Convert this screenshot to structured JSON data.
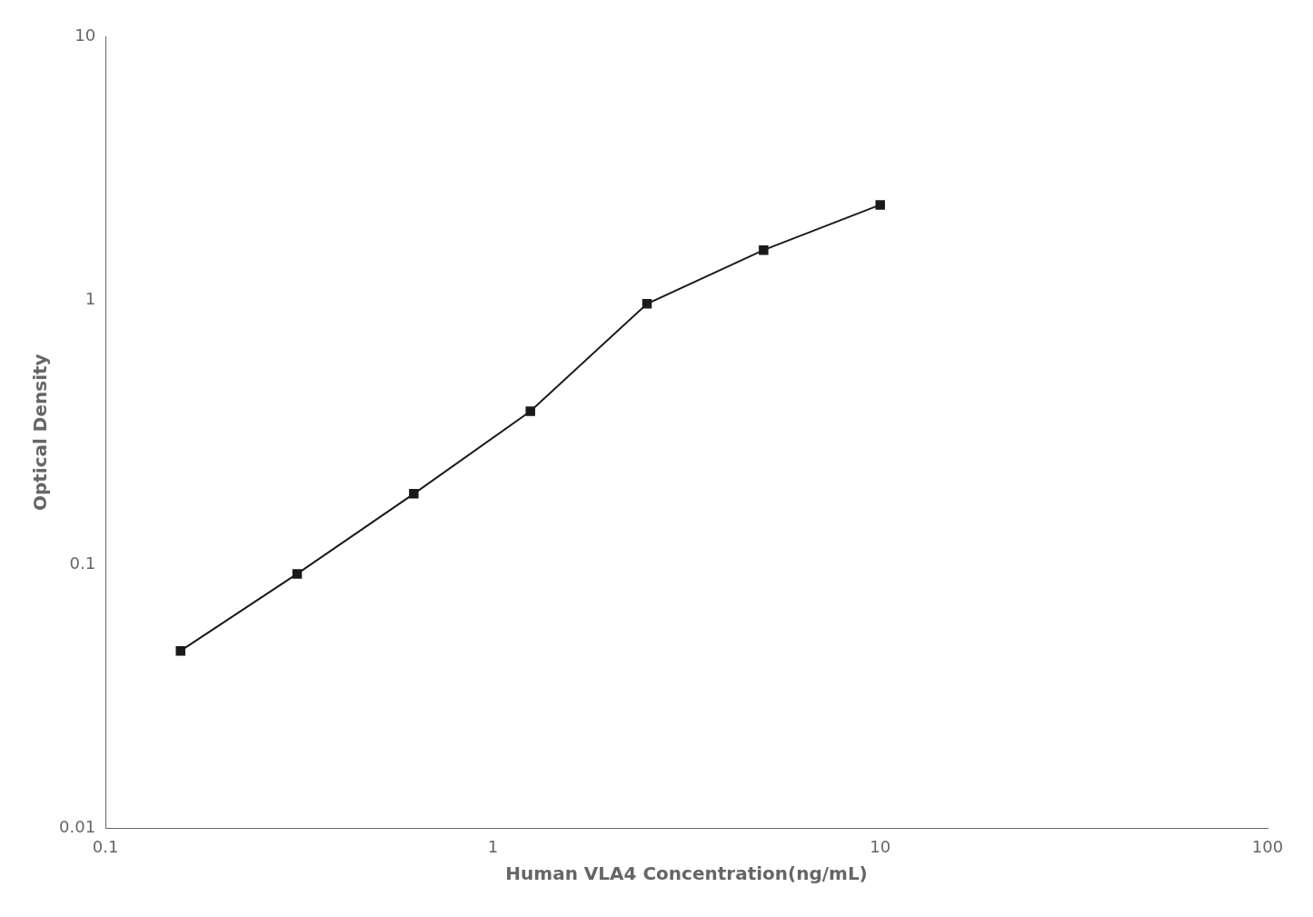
{
  "chart_data": {
    "type": "line",
    "x": [
      0.15625,
      0.3125,
      0.625,
      1.25,
      2.5,
      5.0,
      10.0
    ],
    "values": [
      0.047,
      0.092,
      0.185,
      0.38,
      0.97,
      1.55,
      2.3
    ],
    "xlabel": "Human VLA4 Concentration(ng/mL)",
    "ylabel": "Optical Density",
    "xlim": [
      0.1,
      100
    ],
    "ylim": [
      0.01,
      10
    ],
    "xticks": [
      0.1,
      1,
      10,
      100
    ],
    "yticks": [
      0.01,
      0.1,
      1,
      10
    ],
    "log": true,
    "grid": false,
    "color": "#1a1a1a",
    "marker": "square"
  }
}
